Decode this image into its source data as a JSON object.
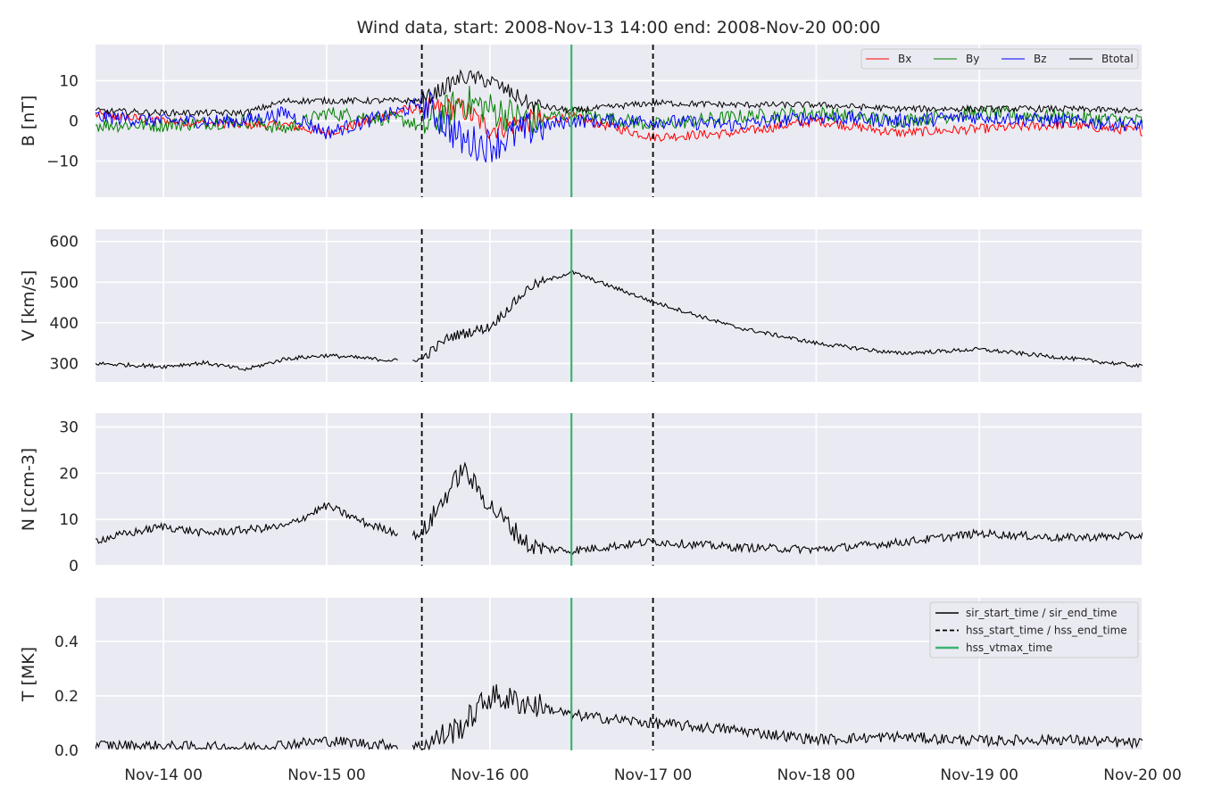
{
  "figure": {
    "title": "Wind data, start: 2008-Nov-13 14:00  end: 2008-Nov-20 00:00"
  },
  "colors": {
    "panel_bg": "#eaeaf2",
    "grid": "#ffffff",
    "Bx": "#ff0000",
    "By": "#008000",
    "Bz": "#0000ff",
    "Btotal": "#000000",
    "vline_hss": "#000000",
    "vline_vtmax": "#3cb371"
  },
  "legends": {
    "field": [
      "Bx",
      "By",
      "Bz",
      "Btotal"
    ],
    "times": [
      "sir_start_time / sir_end_time",
      "hss_start_time / hss_end_time",
      "hss_vtmax_time"
    ]
  },
  "chart_data": [
    {
      "type": "line",
      "panel": "B",
      "ylabel": "B [nT]",
      "ylim": [
        -19,
        19
      ],
      "yticks": [
        -10,
        0,
        10
      ],
      "xlim": [
        "2008-11-13 14:00",
        "2008-11-20 00:00"
      ],
      "xticks": [
        "2008-11-14 00:00",
        "2008-11-15 00:00",
        "2008-11-16 00:00",
        "2008-11-17 00:00",
        "2008-11-18 00:00",
        "2008-11-19 00:00",
        "2008-11-20 00:00"
      ],
      "xticklabels": [
        "Nov-14 00",
        "Nov-15 00",
        "Nov-16 00",
        "Nov-17 00",
        "Nov-18 00",
        "Nov-19 00",
        "Nov-20 00"
      ],
      "grid": true,
      "legend": "top-right",
      "x": [
        "2008-11-13 14:00",
        "2008-11-14 00:00",
        "2008-11-14 12:00",
        "2008-11-14 18:00",
        "2008-11-15 00:00",
        "2008-11-15 12:00",
        "2008-11-15 14:00",
        "2008-11-15 20:00",
        "2008-11-16 00:00",
        "2008-11-16 06:00",
        "2008-11-16 12:00",
        "2008-11-17 00:00",
        "2008-11-17 12:00",
        "2008-11-18 00:00",
        "2008-11-18 12:00",
        "2008-11-19 00:00",
        "2008-11-19 12:00",
        "2008-11-20 00:00"
      ],
      "series": [
        {
          "name": "Bx",
          "values": [
            1.5,
            0,
            -1,
            -1,
            -3,
            3,
            3,
            3,
            -2,
            0,
            1,
            -4,
            -3,
            0,
            -3,
            -2,
            -1,
            -2.5
          ],
          "noise": 1.2
        },
        {
          "name": "By",
          "values": [
            -1,
            -1,
            0,
            -2,
            2,
            0,
            -2,
            5,
            3,
            0,
            2,
            -1,
            1,
            2,
            0,
            2,
            1,
            0
          ],
          "noise": 1.8
        },
        {
          "name": "Bz",
          "values": [
            1,
            0,
            0,
            2,
            -3,
            3,
            5,
            -5,
            -6,
            -2,
            0,
            0,
            -1,
            1,
            0,
            1,
            0,
            -1
          ],
          "noise": 1.8
        },
        {
          "name": "Btotal",
          "values": [
            2.5,
            2,
            2,
            5,
            5,
            5,
            5,
            11,
            10,
            4,
            2.5,
            4.5,
            4,
            4,
            3,
            3,
            3,
            2.5
          ],
          "noise": 0.8
        }
      ]
    },
    {
      "type": "line",
      "panel": "V",
      "ylabel": "V [km/s]",
      "ylim": [
        255,
        630
      ],
      "yticks": [
        300,
        400,
        500,
        600
      ],
      "grid": true,
      "x": [
        "2008-11-13 14:00",
        "2008-11-14 00:00",
        "2008-11-14 06:00",
        "2008-11-14 12:00",
        "2008-11-14 18:00",
        "2008-11-15 00:00",
        "2008-11-15 12:00",
        "2008-11-15 14:00",
        "2008-11-15 18:00",
        "2008-11-16 00:00",
        "2008-11-16 06:00",
        "2008-11-16 12:00",
        "2008-11-17 00:00",
        "2008-11-17 12:00",
        "2008-11-18 00:00",
        "2008-11-18 12:00",
        "2008-11-19 00:00",
        "2008-11-19 12:00",
        "2008-11-20 00:00"
      ],
      "values": [
        300,
        293,
        302,
        285,
        312,
        320,
        305,
        312,
        365,
        390,
        490,
        525,
        452,
        390,
        350,
        325,
        335,
        315,
        293
      ],
      "noise": 5
    },
    {
      "type": "line",
      "panel": "N",
      "ylabel": "N [ccm-3]",
      "ylim": [
        0,
        33
      ],
      "yticks": [
        0,
        10,
        20,
        30
      ],
      "grid": true,
      "x": [
        "2008-11-13 14:00",
        "2008-11-14 00:00",
        "2008-11-14 06:00",
        "2008-11-14 18:00",
        "2008-11-15 00:00",
        "2008-11-15 06:00",
        "2008-11-15 12:00",
        "2008-11-15 14:00",
        "2008-11-15 20:00",
        "2008-11-16 00:00",
        "2008-11-16 06:00",
        "2008-11-16 12:00",
        "2008-11-17 00:00",
        "2008-11-17 12:00",
        "2008-11-18 00:00",
        "2008-11-18 12:00",
        "2008-11-19 00:00",
        "2008-11-19 12:00",
        "2008-11-20 00:00"
      ],
      "values": [
        5.5,
        8.5,
        7,
        8.5,
        13,
        9,
        6.5,
        6.8,
        21,
        13,
        4,
        3.2,
        5.2,
        4,
        3.5,
        5,
        7,
        6,
        6.5
      ],
      "noise": 0.9
    },
    {
      "type": "line",
      "panel": "T",
      "ylabel": "T [MK]",
      "ylim": [
        0,
        0.56
      ],
      "yticks": [
        0.0,
        0.2,
        0.4
      ],
      "yticklabels": [
        "0.0",
        "0.2",
        "0.4"
      ],
      "grid": true,
      "legend": "top-right",
      "x": [
        "2008-11-13 14:00",
        "2008-11-14 00:00",
        "2008-11-14 12:00",
        "2008-11-15 00:00",
        "2008-11-15 12:00",
        "2008-11-15 14:00",
        "2008-11-15 20:00",
        "2008-11-16 00:00",
        "2008-11-16 06:00",
        "2008-11-16 12:00",
        "2008-11-17 00:00",
        "2008-11-17 12:00",
        "2008-11-18 00:00",
        "2008-11-18 12:00",
        "2008-11-19 00:00",
        "2008-11-19 12:00",
        "2008-11-20 00:00"
      ],
      "values": [
        0.02,
        0.015,
        0.01,
        0.035,
        0.015,
        0.015,
        0.09,
        0.2,
        0.17,
        0.13,
        0.1,
        0.075,
        0.04,
        0.05,
        0.035,
        0.04,
        0.025
      ],
      "noise": 0.02
    }
  ],
  "vertical_lines": {
    "hss_start_time": "2008-11-15 14:00",
    "hss_end_time": "2008-11-17 00:00",
    "hss_vtmax_time": "2008-11-16 12:00"
  }
}
